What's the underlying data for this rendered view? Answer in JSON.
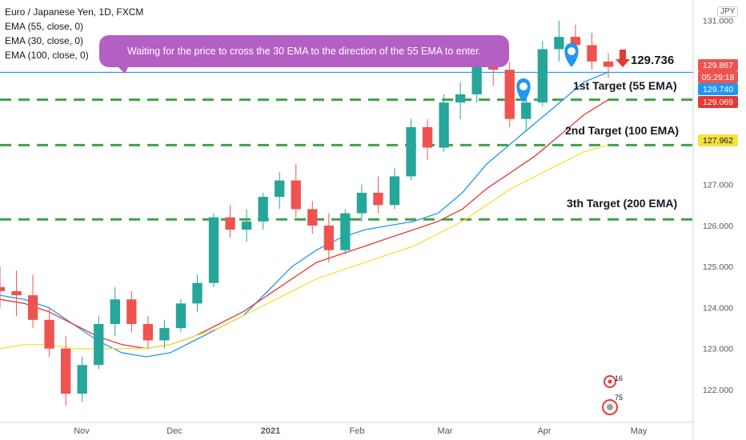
{
  "legend": {
    "title": "Euro / Japanese Yen, 1D, FXCM",
    "ema1": "EMA (55, close, 0)",
    "ema2": "EMA (30, close, 0)",
    "ema3": "EMA (100, close, 0)"
  },
  "callout": "Waiting for the price to cross the 30 EMA to the direction of the 55 EMA to enter.",
  "targets": {
    "t1": "1st Target (55 EMA)",
    "t2": "2nd Target (100 EMA)",
    "t3": "3th Target (200 EMA)"
  },
  "price_label": "129.736",
  "currency": "JPY",
  "axis_tags": {
    "close": "129.867",
    "countdown": "05:29:18",
    "ema30": "129.740",
    "ema55": "129.069",
    "ema100": "127.962"
  },
  "badges": {
    "ideas": "16",
    "comments": "75"
  },
  "colors": {
    "up": "#26a69a",
    "down": "#ef5350",
    "ema30": "#2196f3",
    "ema55": "#e53935",
    "ema100": "#f5e23d",
    "target": "#43a047",
    "hline": "#2196f3"
  },
  "chart_data": {
    "type": "candlestick",
    "title": "Euro / Japanese Yen, 1D, FXCM",
    "x_ticks": [
      "Nov",
      "Dec",
      "2021",
      "Feb",
      "Mar",
      "Apr",
      "May"
    ],
    "y_ticks": [
      "131.000",
      "127.000",
      "126.000",
      "125.000",
      "124.000",
      "123.000",
      "122.000"
    ],
    "ylim": [
      121.2,
      131.5
    ],
    "current_price": 129.736,
    "target_levels": [
      129.069,
      127.962,
      126.15
    ],
    "series": [
      {
        "name": "EMA (30, close, 0)",
        "values": [
          124.3,
          124.2,
          124.0,
          123.6,
          123.2,
          122.9,
          122.8,
          122.9,
          123.2,
          123.5,
          123.8,
          124.4,
          125.0,
          125.4,
          125.7,
          125.9,
          126.0,
          126.1,
          126.3,
          126.8,
          127.5,
          128.0,
          128.5,
          129.0,
          129.5,
          129.74
        ]
      },
      {
        "name": "EMA (55, close, 0)",
        "values": [
          124.2,
          124.1,
          123.9,
          123.6,
          123.3,
          123.1,
          123.0,
          123.1,
          123.3,
          123.6,
          123.9,
          124.3,
          124.7,
          125.1,
          125.3,
          125.5,
          125.7,
          125.9,
          126.1,
          126.4,
          126.9,
          127.3,
          127.7,
          128.2,
          128.7,
          129.07
        ]
      },
      {
        "name": "EMA (100, close, 0)",
        "values": [
          123.0,
          123.1,
          123.1,
          123.0,
          123.0,
          123.0,
          123.0,
          123.1,
          123.3,
          123.5,
          123.8,
          124.1,
          124.4,
          124.7,
          124.9,
          125.1,
          125.3,
          125.5,
          125.8,
          126.1,
          126.5,
          126.9,
          127.2,
          127.5,
          127.8,
          127.96
        ]
      }
    ],
    "ohlc": [
      [
        124.5,
        125.0,
        124.0,
        124.4
      ],
      [
        124.4,
        124.9,
        123.8,
        124.3
      ],
      [
        124.3,
        124.8,
        123.5,
        123.7
      ],
      [
        123.7,
        124.0,
        122.8,
        123.0
      ],
      [
        123.0,
        123.3,
        121.6,
        121.9
      ],
      [
        121.9,
        122.8,
        121.7,
        122.6
      ],
      [
        122.6,
        123.8,
        122.5,
        123.6
      ],
      [
        123.6,
        124.5,
        123.3,
        124.2
      ],
      [
        124.2,
        124.4,
        123.4,
        123.6
      ],
      [
        123.6,
        123.8,
        123.0,
        123.2
      ],
      [
        123.2,
        123.7,
        123.0,
        123.5
      ],
      [
        123.5,
        124.2,
        123.4,
        124.1
      ],
      [
        124.1,
        124.8,
        123.9,
        124.6
      ],
      [
        124.6,
        126.3,
        124.5,
        126.2
      ],
      [
        126.2,
        126.5,
        125.7,
        125.9
      ],
      [
        125.9,
        126.4,
        125.6,
        126.1
      ],
      [
        126.1,
        126.8,
        125.9,
        126.7
      ],
      [
        126.7,
        127.3,
        126.4,
        127.1
      ],
      [
        127.1,
        127.5,
        126.2,
        126.4
      ],
      [
        126.4,
        126.6,
        125.8,
        126.0
      ],
      [
        126.0,
        126.3,
        125.1,
        125.4
      ],
      [
        125.4,
        126.4,
        125.3,
        126.3
      ],
      [
        126.3,
        127.0,
        126.1,
        126.8
      ],
      [
        126.8,
        127.2,
        126.3,
        126.5
      ],
      [
        126.5,
        127.4,
        126.4,
        127.2
      ],
      [
        127.2,
        128.6,
        127.1,
        128.4
      ],
      [
        128.4,
        128.6,
        127.6,
        127.9
      ],
      [
        127.9,
        129.2,
        127.8,
        129.0
      ],
      [
        129.0,
        129.5,
        128.6,
        129.2
      ],
      [
        129.2,
        130.4,
        129.0,
        130.2
      ],
      [
        130.2,
        130.6,
        129.4,
        129.8
      ],
      [
        129.8,
        130.0,
        128.4,
        128.6
      ],
      [
        128.6,
        129.2,
        128.3,
        129.0
      ],
      [
        129.0,
        130.5,
        128.9,
        130.3
      ],
      [
        130.3,
        131.0,
        130.0,
        130.6
      ],
      [
        130.6,
        130.9,
        130.1,
        130.4
      ],
      [
        130.4,
        130.7,
        129.8,
        130.0
      ],
      [
        130.0,
        130.2,
        129.6,
        129.87
      ]
    ]
  }
}
